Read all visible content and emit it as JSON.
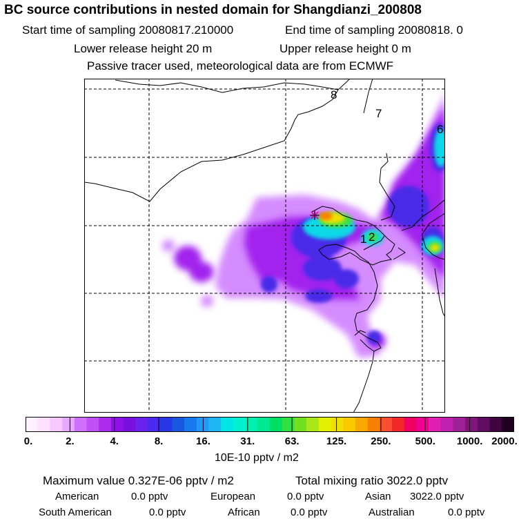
{
  "header": {
    "title": "BC  source contributions in nested domain for Shangdianzi_200808",
    "start_time": "Start time of sampling 20080817.210000",
    "end_time": "End time of sampling 20080818.     0",
    "lower_release": "Lower release height   20 m",
    "upper_release": "Upper release height    0 m",
    "tracer_note": "Passive tracer used, meteorological data are from ECMWF"
  },
  "map": {
    "region_labels": [
      "8",
      "7",
      "6",
      "1",
      "2"
    ],
    "station_marker": "receptor-star"
  },
  "colorbar": {
    "tick_labels": [
      "0.",
      "2.",
      "4.",
      "8.",
      "16.",
      "31.",
      "63.",
      "125.",
      "250.",
      "500.",
      "1000.",
      "2000."
    ],
    "colors": [
      "#fff0ff",
      "#ffe0ff",
      "#f6c8ff",
      "#e8a8ff",
      "#d070ff",
      "#c050f5",
      "#aa2aee",
      "#9010e8",
      "#7a10dd",
      "#6a22ee",
      "#4a2af0",
      "#2838e8",
      "#1858e0",
      "#1878ee",
      "#2098f5",
      "#20b6f5",
      "#00e6e6",
      "#00f0d0",
      "#00f0b0",
      "#00e890",
      "#00e060",
      "#30e040",
      "#70e020",
      "#a8e818",
      "#e0f000",
      "#f0e000",
      "#f8c800",
      "#f8a800",
      "#f88000",
      "#f85030",
      "#f02828",
      "#f00060",
      "#f00090",
      "#e020b0",
      "#c020b0",
      "#a02098",
      "#801478",
      "#600c60",
      "#400440",
      "#200020"
    ],
    "units": "10E-10 pptv / m2"
  },
  "stats": {
    "maximum_value": "Maximum value  0.327E-06 pptv / m2",
    "total_mixing_ratio": "Total mixing ratio     3022.0 pptv",
    "american_label": "American",
    "american_value": "0.0 pptv",
    "european_label": "European",
    "european_value": "0.0 pptv",
    "asian_label": "Asian",
    "asian_value": "3022.0 pptv",
    "south_american_label": "South American",
    "south_american_value": "0.0 pptv",
    "african_label": "African",
    "african_value": "0.0 pptv",
    "australian_label": "Australian",
    "australian_value": "0.0 pptv"
  }
}
